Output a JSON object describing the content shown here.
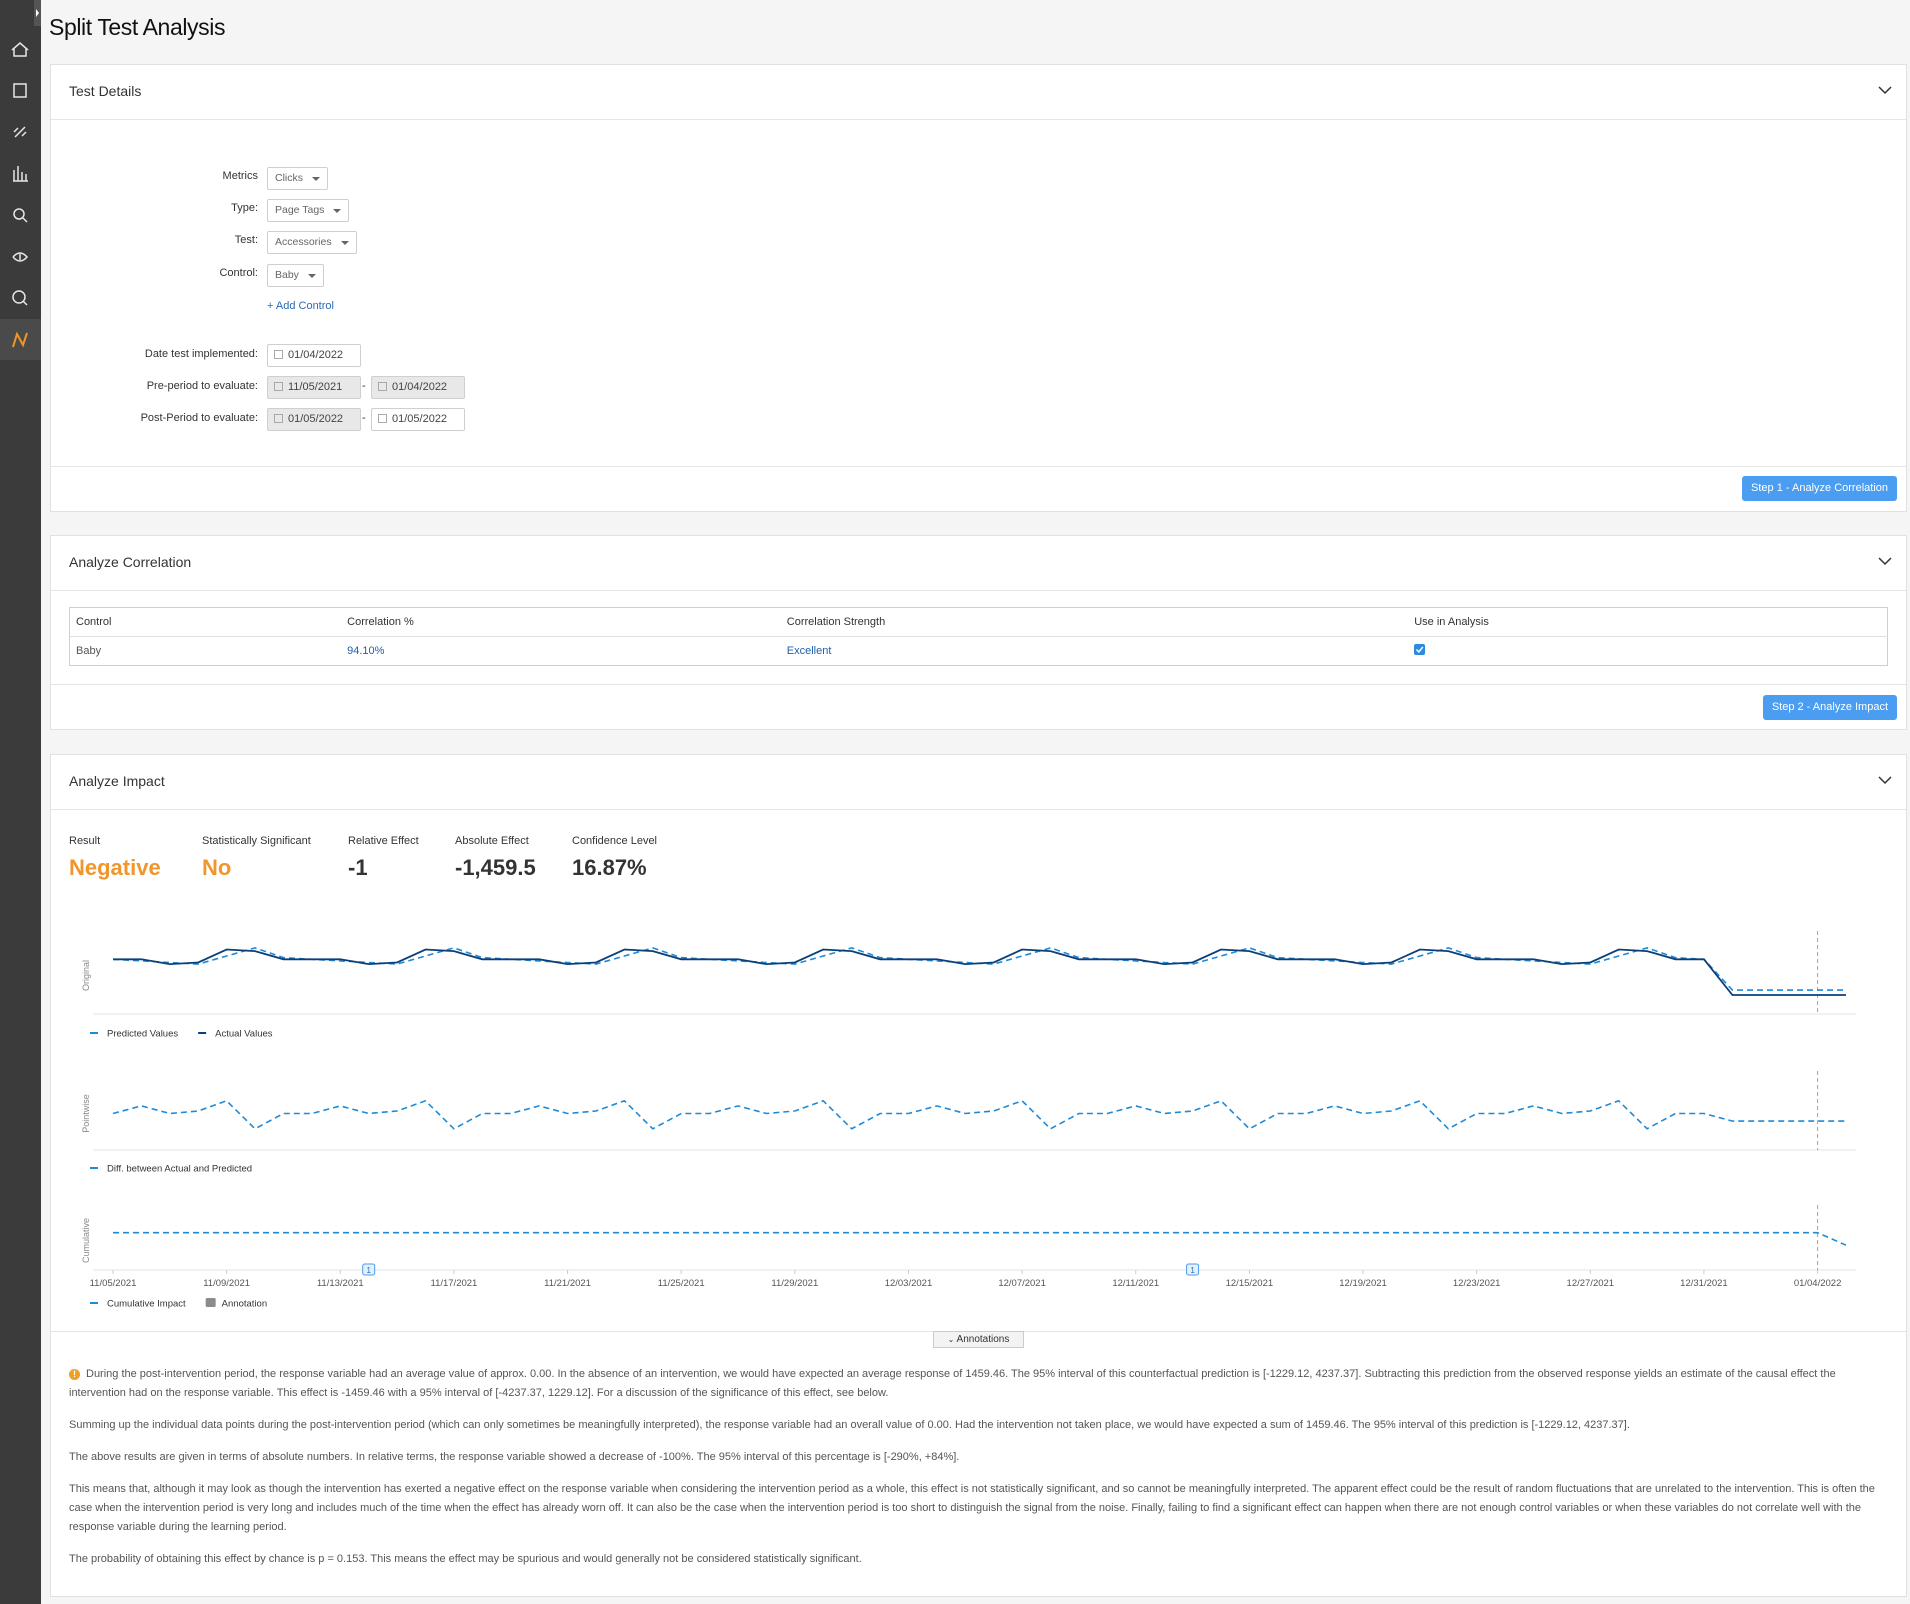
{
  "page": {
    "title": "Split Test Analysis"
  },
  "test_details": {
    "title": "Test Details",
    "fields": [
      {
        "label": "Metrics",
        "value": "Clicks"
      },
      {
        "label": "Type:",
        "value": "Page Tags"
      },
      {
        "label": "Test:",
        "value": "Accessories"
      },
      {
        "label": "Control:",
        "value": "Baby"
      }
    ],
    "add_control": "+ Add Control",
    "dates": [
      {
        "label": "Date test implemented:",
        "values": [
          "01/04/2022"
        ],
        "disabled": [
          false
        ]
      },
      {
        "label": "Pre-period to evaluate:",
        "values": [
          "11/05/2021",
          "01/04/2022"
        ],
        "disabled": [
          true,
          true
        ],
        "separator": "-"
      },
      {
        "label": "Post-Period to evaluate:",
        "values": [
          "01/05/2022",
          "01/05/2022"
        ],
        "disabled": [
          true,
          false
        ],
        "separator": "-"
      }
    ],
    "button": "Step 1 - Analyze Correlation"
  },
  "correlation": {
    "title": "Analyze Correlation",
    "columns": [
      "Control",
      "Correlation %",
      "Correlation Strength",
      "Use in Analysis"
    ],
    "rows": [
      [
        "Baby",
        "94.10%",
        "Excellent"
      ]
    ],
    "use_in_analysis": [
      true
    ],
    "button": "Step 2 - Analyze Impact"
  },
  "impact": {
    "title": "Analyze Impact",
    "stats": [
      {
        "label": "Result",
        "value": "Negative",
        "highlight": true
      },
      {
        "label": "Statistically Significant",
        "value": "No",
        "highlight": true
      },
      {
        "label": "Relative Effect",
        "value": "-1",
        "highlight": false
      },
      {
        "label": "Absolute Effect",
        "value": "-1,459.5",
        "highlight": false
      },
      {
        "label": "Confidence Level",
        "value": "16.87%",
        "highlight": false
      }
    ],
    "annotations_button": "Annotations",
    "paragraphs": [
      "During the post-intervention period, the response variable had an average value of approx. 0.00. In the absence of an intervention, we would have expected an average response of 1459.46. The 95% interval of this counterfactual prediction is [-1229.12, 4237.37]. Subtracting this prediction from the observed response yields an estimate of the causal effect the intervention had on the response variable. This effect is -1459.46 with a 95% interval of [-4237.37, 1229.12]. For a discussion of the significance of this effect, see below.",
      "Summing up the individual data points during the post-intervention period (which can only sometimes be meaningfully interpreted), the response variable had an overall value of 0.00. Had the intervention not taken place, we would have expected a sum of 1459.46. The 95% interval of this prediction is [-1229.12, 4237.37].",
      "The above results are given in terms of absolute numbers. In relative terms, the response variable showed a decrease of -100%. The 95% interval of this percentage is [-290%, +84%].",
      "This means that, although it may look as though the intervention has exerted a negative effect on the response variable when considering the intervention period as a whole, this effect is not statistically significant, and so cannot be meaningfully interpreted. The apparent effect could be the result of random fluctuations that are unrelated to the intervention. This is often the case when the intervention period is very long and includes much of the time when the effect has already worn off. It can also be the case when the intervention period is too short to distinguish the signal from the noise. Finally, failing to find a significant effect can happen when there are not enough control variables or when these variables do not correlate well with the response variable during the learning period.",
      "The probability of obtaining this effect by chance is p = 0.153. This means the effect may be spurious and would generally not be considered statistically significant."
    ]
  },
  "chart_data": [
    {
      "type": "line",
      "y_label": "Original",
      "x": [
        "11/05/2021",
        "11/06/2021",
        "11/07/2021",
        "11/08/2021",
        "11/09/2021",
        "11/10/2021",
        "11/11/2021",
        "11/12/2021",
        "11/13/2021",
        "11/14/2021",
        "11/15/2021",
        "11/16/2021",
        "11/17/2021",
        "11/18/2021",
        "11/19/2021",
        "11/20/2021",
        "11/21/2021",
        "11/22/2021",
        "11/23/2021",
        "11/24/2021",
        "11/25/2021",
        "11/26/2021",
        "11/27/2021",
        "11/28/2021",
        "11/29/2021",
        "11/30/2021",
        "12/01/2021",
        "12/02/2021",
        "12/03/2021",
        "12/04/2021",
        "12/05/2021",
        "12/06/2021",
        "12/07/2021",
        "12/08/2021",
        "12/09/2021",
        "12/10/2021",
        "12/11/2021",
        "12/12/2021",
        "12/13/2021",
        "12/14/2021",
        "12/15/2021",
        "12/16/2021",
        "12/17/2021",
        "12/18/2021",
        "12/19/2021",
        "12/20/2021",
        "12/21/2021",
        "12/22/2021",
        "12/23/2021",
        "12/24/2021",
        "12/25/2021",
        "12/26/2021",
        "12/27/2021",
        "12/28/2021",
        "12/29/2021",
        "12/30/2021",
        "12/31/2021",
        "01/01/2022",
        "01/02/2022",
        "01/03/2022",
        "01/04/2022",
        "01/05/2022"
      ],
      "ylim": [
        20,
        60
      ],
      "series": [
        {
          "name": "Predicted Values",
          "color": "#1f8ad6",
          "dashed": true,
          "values": [
            50,
            49,
            48,
            47,
            52,
            57,
            51,
            50,
            49,
            48,
            47,
            52,
            57,
            51,
            50,
            49,
            48,
            47,
            52,
            57,
            51,
            50,
            49,
            48,
            47,
            52,
            57,
            51,
            50,
            49,
            48,
            47,
            52,
            57,
            51,
            50,
            49,
            48,
            47,
            52,
            57,
            51,
            50,
            49,
            48,
            47,
            52,
            57,
            51,
            50,
            49,
            48,
            47,
            52,
            57,
            51,
            50,
            31,
            31,
            31,
            31,
            31
          ]
        },
        {
          "name": "Actual Values",
          "color": "#0b3f7a",
          "dashed": false,
          "values": [
            50,
            50,
            47,
            48,
            56,
            55,
            50,
            50,
            50,
            47,
            48,
            56,
            55,
            50,
            50,
            50,
            47,
            48,
            56,
            55,
            50,
            50,
            50,
            47,
            48,
            56,
            55,
            50,
            50,
            50,
            47,
            48,
            56,
            55,
            50,
            50,
            50,
            47,
            48,
            56,
            55,
            50,
            50,
            50,
            47,
            48,
            56,
            55,
            50,
            50,
            50,
            47,
            48,
            56,
            55,
            50,
            50,
            28,
            28,
            28,
            28,
            28
          ]
        }
      ]
    },
    {
      "type": "line",
      "y_label": "Pointwise",
      "x": [
        "11/05/2021",
        "11/06/2021",
        "11/07/2021",
        "11/08/2021",
        "11/09/2021",
        "11/10/2021",
        "11/11/2021",
        "11/12/2021",
        "11/13/2021",
        "11/14/2021",
        "11/15/2021",
        "11/16/2021",
        "11/17/2021",
        "11/18/2021",
        "11/19/2021",
        "11/20/2021",
        "11/21/2021",
        "11/22/2021",
        "11/23/2021",
        "11/24/2021",
        "11/25/2021",
        "11/26/2021",
        "11/27/2021",
        "11/28/2021",
        "11/29/2021",
        "11/30/2021",
        "12/01/2021",
        "12/02/2021",
        "12/03/2021",
        "12/04/2021",
        "12/05/2021",
        "12/06/2021",
        "12/07/2021",
        "12/08/2021",
        "12/09/2021",
        "12/10/2021",
        "12/11/2021",
        "12/12/2021",
        "12/13/2021",
        "12/14/2021",
        "12/15/2021",
        "12/16/2021",
        "12/17/2021",
        "12/18/2021",
        "12/19/2021",
        "12/20/2021",
        "12/21/2021",
        "12/22/2021",
        "12/23/2021",
        "12/24/2021",
        "12/25/2021",
        "12/26/2021",
        "12/27/2021",
        "12/28/2021",
        "12/29/2021",
        "12/30/2021",
        "12/31/2021",
        "01/01/2022",
        "01/02/2022",
        "01/03/2022",
        "01/04/2022",
        "01/05/2022"
      ],
      "ylim": [
        38,
        62
      ],
      "series": [
        {
          "name": "Diff. between Actual and Predicted",
          "color": "#1f8ad6",
          "dashed": true,
          "values": [
            50,
            53,
            50,
            51,
            55,
            44,
            50,
            50,
            53,
            50,
            51,
            55,
            44,
            50,
            50,
            53,
            50,
            51,
            55,
            44,
            50,
            50,
            53,
            50,
            51,
            55,
            44,
            50,
            50,
            53,
            50,
            51,
            55,
            44,
            50,
            50,
            53,
            50,
            51,
            55,
            44,
            50,
            50,
            53,
            50,
            51,
            55,
            44,
            50,
            50,
            53,
            50,
            51,
            55,
            44,
            50,
            50,
            47,
            47,
            47,
            47,
            47
          ]
        }
      ]
    },
    {
      "type": "line",
      "y_label": "Cumulative",
      "x": [
        "11/05/2021",
        "11/06/2021",
        "11/07/2021",
        "11/08/2021",
        "11/09/2021",
        "11/10/2021",
        "11/11/2021",
        "11/12/2021",
        "11/13/2021",
        "11/14/2021",
        "11/15/2021",
        "11/16/2021",
        "11/17/2021",
        "11/18/2021",
        "11/19/2021",
        "11/20/2021",
        "11/21/2021",
        "11/22/2021",
        "11/23/2021",
        "11/24/2021",
        "11/25/2021",
        "11/26/2021",
        "11/27/2021",
        "11/28/2021",
        "11/29/2021",
        "11/30/2021",
        "12/01/2021",
        "12/02/2021",
        "12/03/2021",
        "12/04/2021",
        "12/05/2021",
        "12/06/2021",
        "12/07/2021",
        "12/08/2021",
        "12/09/2021",
        "12/10/2021",
        "12/11/2021",
        "12/12/2021",
        "12/13/2021",
        "12/14/2021",
        "12/15/2021",
        "12/16/2021",
        "12/17/2021",
        "12/18/2021",
        "12/19/2021",
        "12/20/2021",
        "12/21/2021",
        "12/22/2021",
        "12/23/2021",
        "12/24/2021",
        "12/25/2021",
        "12/26/2021",
        "12/27/2021",
        "12/28/2021",
        "12/29/2021",
        "12/30/2021",
        "12/31/2021",
        "01/01/2022",
        "01/02/2022",
        "01/03/2022",
        "01/04/2022",
        "01/05/2022"
      ],
      "xticks": [
        "11/05/2021",
        "11/09/2021",
        "11/13/2021",
        "11/17/2021",
        "11/21/2021",
        "11/25/2021",
        "11/29/2021",
        "12/03/2021",
        "12/07/2021",
        "12/11/2021",
        "12/15/2021",
        "12/19/2021",
        "12/23/2021",
        "12/27/2021",
        "12/31/2021",
        "01/04/2022"
      ],
      "ylim": [
        30,
        60
      ],
      "series": [
        {
          "name": "Cumulative Impact",
          "color": "#1f8ad6",
          "dashed": true,
          "values": [
            50,
            50,
            50,
            50,
            50,
            50,
            50,
            50,
            50,
            50,
            50,
            50,
            50,
            50,
            50,
            50,
            50,
            50,
            50,
            50,
            50,
            50,
            50,
            50,
            50,
            50,
            50,
            50,
            50,
            50,
            50,
            50,
            50,
            50,
            50,
            50,
            50,
            50,
            50,
            50,
            50,
            50,
            50,
            50,
            50,
            50,
            50,
            50,
            50,
            50,
            50,
            50,
            50,
            50,
            50,
            50,
            50,
            50,
            50,
            50,
            50,
            42
          ]
        }
      ],
      "annotation_legend": "Annotation",
      "annotation_color": "#8c8c8c",
      "annotations": [
        {
          "x": "11/14/2021",
          "label": "1"
        },
        {
          "x": "12/13/2021",
          "label": "1"
        }
      ]
    }
  ]
}
